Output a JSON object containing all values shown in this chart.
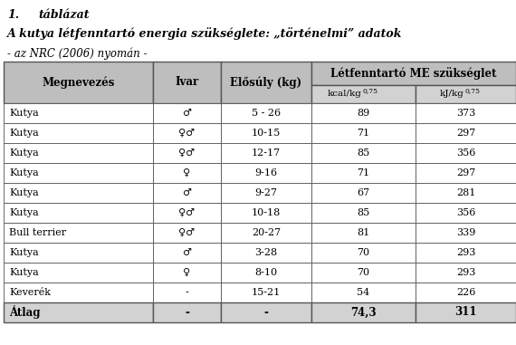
{
  "title_number": "1.",
  "title_label": "táblázat",
  "subtitle": "A kutya létfenntartó energia szükséglete: „történelmi” adatok",
  "source": "- az NRC (2006) nyomán -",
  "col_headers": [
    "Megnevezés",
    "Ivar",
    "Elősúly (kg)",
    "Létfenntartó ME szükséglet"
  ],
  "sub_header_left": "kcal/kg",
  "sub_header_right": "kJ/kg",
  "sub_exp": "0,75",
  "rows": [
    [
      "Kutya",
      "♂",
      "5 - 26",
      "89",
      "373"
    ],
    [
      "Kutya",
      "♀♂",
      "10-15",
      "71",
      "297"
    ],
    [
      "Kutya",
      "♀♂",
      "12-17",
      "85",
      "356"
    ],
    [
      "Kutya",
      "♀",
      "9-16",
      "71",
      "297"
    ],
    [
      "Kutya",
      "♂",
      "9-27",
      "67",
      "281"
    ],
    [
      "Kutya",
      "♀♂",
      "10-18",
      "85",
      "356"
    ],
    [
      "Bull terrier",
      "♀♂",
      "20-27",
      "81",
      "339"
    ],
    [
      "Kutya",
      "♂",
      "3-28",
      "70",
      "293"
    ],
    [
      "Kutya",
      "♀",
      "8-10",
      "70",
      "293"
    ],
    [
      "Keverék",
      "-",
      "15-21",
      "54",
      "226"
    ]
  ],
  "last_row": [
    "Átlag",
    "-",
    "-",
    "74,3",
    "311"
  ],
  "header_bg": "#bebebe",
  "subheader_bg": "#d2d2d2",
  "row_bg": "#ffffff",
  "last_row_bg": "#d2d2d2",
  "border_color": "#555555",
  "text_color": "#000000",
  "figsize": [
    5.7,
    3.81
  ],
  "dpi": 100
}
